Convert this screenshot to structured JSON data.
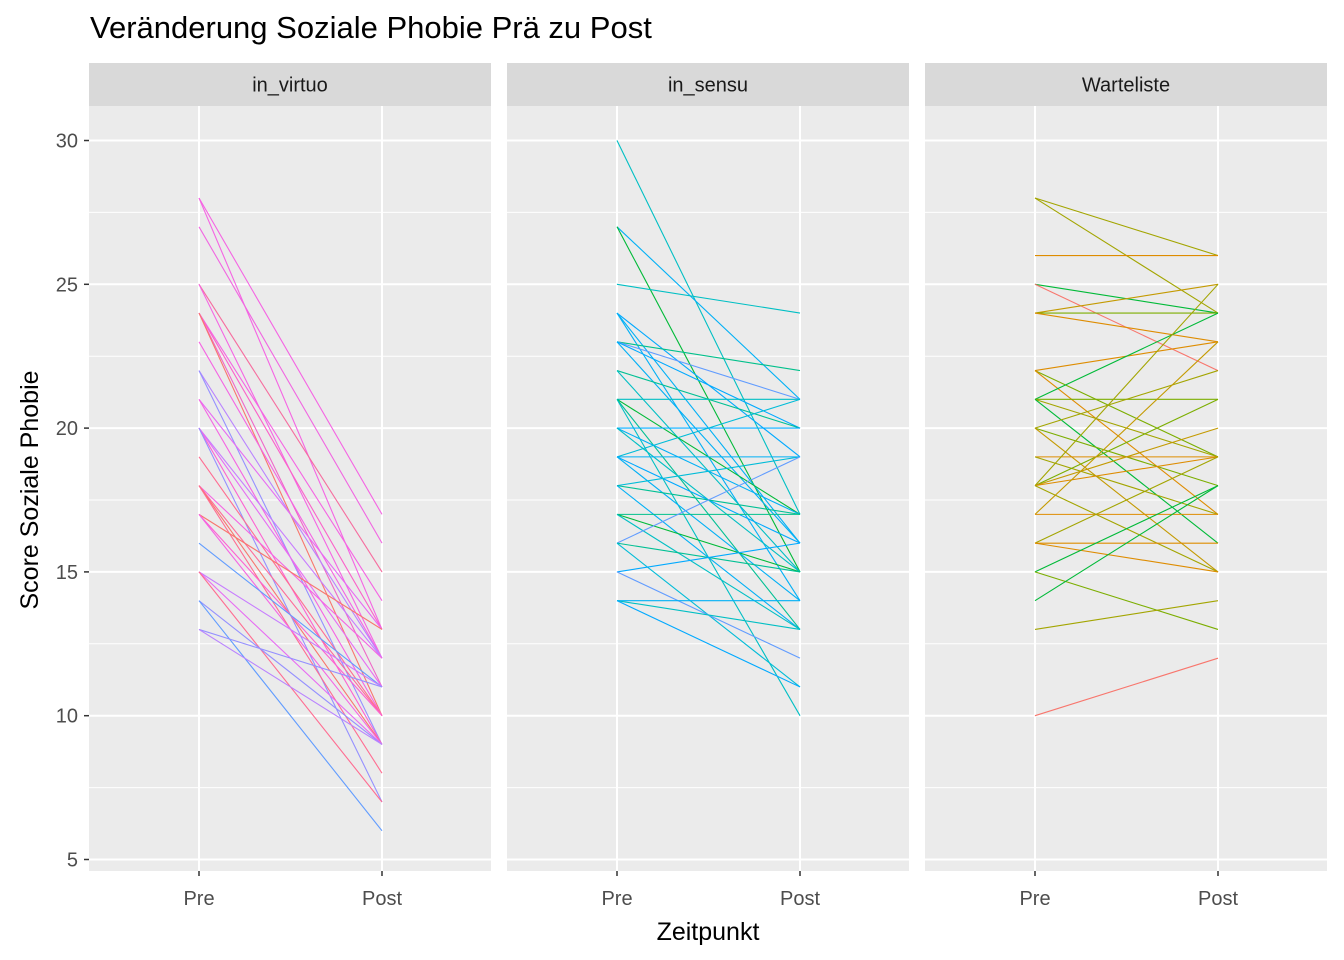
{
  "chart_data": {
    "type": "line",
    "title": "Veränderung Soziale Phobie Prä zu Post",
    "xlabel": "Zeitpunkt",
    "ylabel": "Score Soziale Phobie",
    "x_categories": [
      "Pre",
      "Post"
    ],
    "y_ticks": [
      5,
      10,
      15,
      20,
      25,
      30
    ],
    "ylim": [
      4.6,
      31.2
    ],
    "grid": true,
    "legend": "none",
    "facets": [
      {
        "label": "in_virtuo",
        "series": [
          {
            "values": [
              28,
              17
            ],
            "color": "#f564e3"
          },
          {
            "values": [
              28,
              13
            ],
            "color": "#f564e3"
          },
          {
            "values": [
              27,
              16
            ],
            "color": "#f166e1"
          },
          {
            "values": [
              25,
              15
            ],
            "color": "#f66d9f"
          },
          {
            "values": [
              25,
              12
            ],
            "color": "#f564e3"
          },
          {
            "values": [
              24,
              14
            ],
            "color": "#f564e3"
          },
          {
            "values": [
              24,
              13
            ],
            "color": "#fb61c9"
          },
          {
            "values": [
              24,
              11
            ],
            "color": "#ef67c8"
          },
          {
            "values": [
              24,
              10
            ],
            "color": "#f8766d"
          },
          {
            "values": [
              23,
              12
            ],
            "color": "#f564e3"
          },
          {
            "values": [
              22,
              12
            ],
            "color": "#b983ff"
          },
          {
            "values": [
              22,
              9
            ],
            "color": "#9590ff"
          },
          {
            "values": [
              21,
              13
            ],
            "color": "#e76bf3"
          },
          {
            "values": [
              21,
              10
            ],
            "color": "#f564e3"
          },
          {
            "values": [
              20,
              12
            ],
            "color": "#c77cff"
          },
          {
            "values": [
              20,
              11
            ],
            "color": "#e76bf3"
          },
          {
            "values": [
              20,
              9
            ],
            "color": "#fd61d1"
          },
          {
            "values": [
              20,
              7
            ],
            "color": "#9590ff"
          },
          {
            "values": [
              19,
              10
            ],
            "color": "#ff6c91"
          },
          {
            "values": [
              18,
              12
            ],
            "color": "#f564e3"
          },
          {
            "values": [
              18,
              10
            ],
            "color": "#ff6a98"
          },
          {
            "values": [
              18,
              9
            ],
            "color": "#f8766d"
          },
          {
            "values": [
              18,
              8
            ],
            "color": "#ff6c91"
          },
          {
            "values": [
              17,
              13
            ],
            "color": "#f8766d"
          },
          {
            "values": [
              17,
              10
            ],
            "color": "#fd61d1"
          },
          {
            "values": [
              17,
              9
            ],
            "color": "#f564e3"
          },
          {
            "values": [
              16,
              11
            ],
            "color": "#619cff"
          },
          {
            "values": [
              15,
              11
            ],
            "color": "#c77cff"
          },
          {
            "values": [
              15,
              9
            ],
            "color": "#e76bf3"
          },
          {
            "values": [
              15,
              7
            ],
            "color": "#ff6c91"
          },
          {
            "values": [
              14,
              9
            ],
            "color": "#9590ff"
          },
          {
            "values": [
              14,
              6
            ],
            "color": "#619cff"
          },
          {
            "values": [
              13,
              11
            ],
            "color": "#9590ff"
          },
          {
            "values": [
              13,
              9
            ],
            "color": "#b983ff"
          }
        ]
      },
      {
        "label": "in_sensu",
        "series": [
          {
            "values": [
              30,
              17
            ],
            "color": "#00bfc4"
          },
          {
            "values": [
              27,
              21
            ],
            "color": "#00b0f6"
          },
          {
            "values": [
              27,
              15
            ],
            "color": "#00ba38"
          },
          {
            "values": [
              25,
              24
            ],
            "color": "#00bfc4"
          },
          {
            "values": [
              24,
              19
            ],
            "color": "#00a9ff"
          },
          {
            "values": [
              24,
              16
            ],
            "color": "#00b0f6"
          },
          {
            "values": [
              24,
              14
            ],
            "color": "#00b0f6"
          },
          {
            "values": [
              23,
              22
            ],
            "color": "#00c08b"
          },
          {
            "values": [
              23,
              21
            ],
            "color": "#619cff"
          },
          {
            "values": [
              23,
              20
            ],
            "color": "#00a9ff"
          },
          {
            "values": [
              23,
              16
            ],
            "color": "#00b0f6"
          },
          {
            "values": [
              22,
              20
            ],
            "color": "#00c094"
          },
          {
            "values": [
              22,
              15
            ],
            "color": "#00bfc4"
          },
          {
            "values": [
              21,
              21
            ],
            "color": "#00bfc4"
          },
          {
            "values": [
              21,
              17
            ],
            "color": "#00ba38"
          },
          {
            "values": [
              21,
              13
            ],
            "color": "#00c094"
          },
          {
            "values": [
              21,
              10
            ],
            "color": "#00bfc4"
          },
          {
            "values": [
              20,
              20
            ],
            "color": "#00a9ff"
          },
          {
            "values": [
              20,
              17
            ],
            "color": "#00b0f6"
          },
          {
            "values": [
              20,
              15
            ],
            "color": "#00bfc4"
          },
          {
            "values": [
              19,
              21
            ],
            "color": "#00bcd8"
          },
          {
            "values": [
              19,
              19
            ],
            "color": "#00b0f6"
          },
          {
            "values": [
              19,
              16
            ],
            "color": "#00a9ff"
          },
          {
            "values": [
              19,
              14
            ],
            "color": "#00b0f6"
          },
          {
            "values": [
              18,
              19
            ],
            "color": "#00bcd8"
          },
          {
            "values": [
              18,
              17
            ],
            "color": "#00c094"
          },
          {
            "values": [
              18,
              13
            ],
            "color": "#00b0f6"
          },
          {
            "values": [
              17,
              17
            ],
            "color": "#00c08b"
          },
          {
            "values": [
              17,
              15
            ],
            "color": "#00ba38"
          },
          {
            "values": [
              17,
              13
            ],
            "color": "#00bfc4"
          },
          {
            "values": [
              16,
              19
            ],
            "color": "#619cff"
          },
          {
            "values": [
              16,
              15
            ],
            "color": "#00c094"
          },
          {
            "values": [
              16,
              11
            ],
            "color": "#00bcd8"
          },
          {
            "values": [
              15,
              16
            ],
            "color": "#00a9ff"
          },
          {
            "values": [
              15,
              12
            ],
            "color": "#619cff"
          },
          {
            "values": [
              14,
              14
            ],
            "color": "#00b0f6"
          },
          {
            "values": [
              14,
              13
            ],
            "color": "#00bfc4"
          },
          {
            "values": [
              14,
              11
            ],
            "color": "#00a9ff"
          }
        ]
      },
      {
        "label": "Warteliste",
        "series": [
          {
            "values": [
              28,
              26
            ],
            "color": "#a3a500"
          },
          {
            "values": [
              28,
              24
            ],
            "color": "#a3a500"
          },
          {
            "values": [
              26,
              26
            ],
            "color": "#de8c00"
          },
          {
            "values": [
              25,
              24
            ],
            "color": "#00ba38"
          },
          {
            "values": [
              25,
              22
            ],
            "color": "#f8766d"
          },
          {
            "values": [
              24,
              25
            ],
            "color": "#c49a00"
          },
          {
            "values": [
              24,
              24
            ],
            "color": "#7cae00"
          },
          {
            "values": [
              24,
              23
            ],
            "color": "#de8c00"
          },
          {
            "values": [
              22,
              23
            ],
            "color": "#de8c00"
          },
          {
            "values": [
              22,
              19
            ],
            "color": "#7cae00"
          },
          {
            "values": [
              22,
              17
            ],
            "color": "#de8c00"
          },
          {
            "values": [
              21,
              24
            ],
            "color": "#00ba38"
          },
          {
            "values": [
              21,
              21
            ],
            "color": "#7cae00"
          },
          {
            "values": [
              21,
              19
            ],
            "color": "#a3a500"
          },
          {
            "values": [
              21,
              16
            ],
            "color": "#00ba38"
          },
          {
            "values": [
              20,
              22
            ],
            "color": "#a3a500"
          },
          {
            "values": [
              20,
              18
            ],
            "color": "#7cae00"
          },
          {
            "values": [
              20,
              15
            ],
            "color": "#c49a00"
          },
          {
            "values": [
              19,
              19
            ],
            "color": "#de8c00"
          },
          {
            "values": [
              19,
              17
            ],
            "color": "#a3a500"
          },
          {
            "values": [
              18,
              25
            ],
            "color": "#a3a500"
          },
          {
            "values": [
              18,
              21
            ],
            "color": "#7cae00"
          },
          {
            "values": [
              18,
              20
            ],
            "color": "#c49a00"
          },
          {
            "values": [
              18,
              19
            ],
            "color": "#de8c00"
          },
          {
            "values": [
              18,
              15
            ],
            "color": "#a3a500"
          },
          {
            "values": [
              17,
              23
            ],
            "color": "#c49a00"
          },
          {
            "values": [
              17,
              17
            ],
            "color": "#de8c00"
          },
          {
            "values": [
              16,
              19
            ],
            "color": "#a3a500"
          },
          {
            "values": [
              16,
              16
            ],
            "color": "#de8c00"
          },
          {
            "values": [
              16,
              15
            ],
            "color": "#de8c00"
          },
          {
            "values": [
              15,
              18
            ],
            "color": "#00ba38"
          },
          {
            "values": [
              15,
              13
            ],
            "color": "#7cae00"
          },
          {
            "values": [
              14,
              18
            ],
            "color": "#00ba38"
          },
          {
            "values": [
              13,
              14
            ],
            "color": "#a3a500"
          },
          {
            "values": [
              10,
              12
            ],
            "color": "#f8766d"
          }
        ]
      }
    ]
  }
}
